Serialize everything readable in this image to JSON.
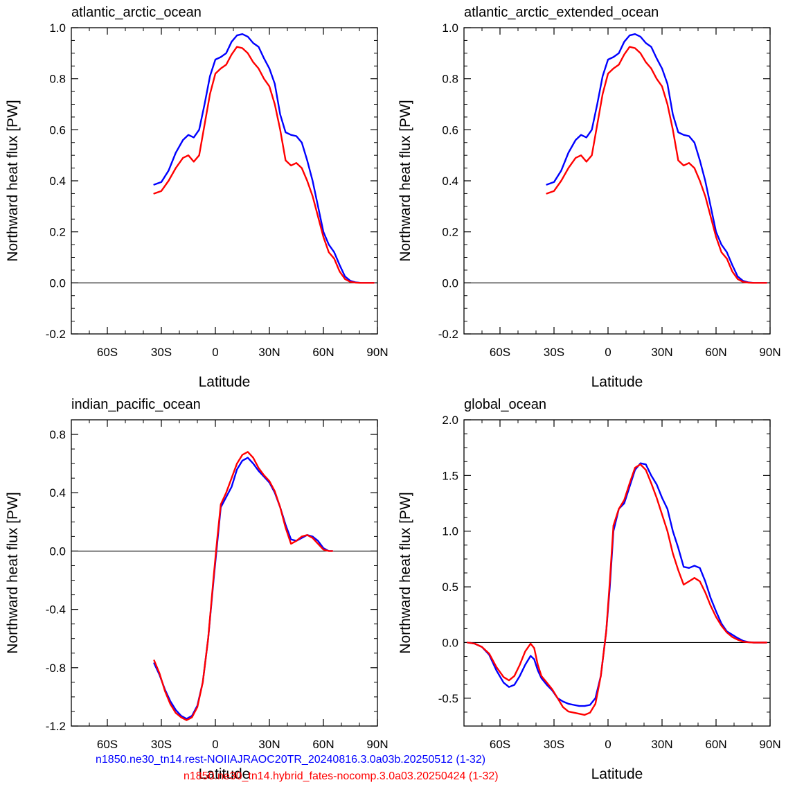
{
  "figure": {
    "legend": [
      {
        "label": "n1850.ne30_tn14.rest-NOIIAJRAOC20TR_20240816.3.0a03b.20250512 (1-32)",
        "color": "#0000ff"
      },
      {
        "label": "n1850.ne30_tn14.hybrid_fates-nocomp.3.0a03.20250424 (1-32)",
        "color": "#ff0000"
      }
    ]
  },
  "chart_data": [
    {
      "type": "line",
      "title": "atlantic_arctic_ocean",
      "xlabel": "Latitude",
      "ylabel": "Northward heat flux [PW]",
      "xlim": [
        -80,
        90
      ],
      "ylim": [
        -0.2,
        1.0
      ],
      "xticks": [
        -60,
        -30,
        0,
        30,
        60,
        90
      ],
      "xticklabels": [
        "60S",
        "30S",
        "0",
        "30N",
        "60N",
        "90N"
      ],
      "yticks": [
        -0.2,
        0.0,
        0.2,
        0.4,
        0.6,
        0.8,
        1.0
      ],
      "yticklabels": [
        "-0.2",
        "0.0",
        "0.2",
        "0.4",
        "0.6",
        "0.8",
        "1.0"
      ],
      "zero_line": true,
      "series": [
        {
          "color": "#0000ff",
          "x": [
            -34,
            -30,
            -26,
            -22,
            -18,
            -15,
            -12,
            -9,
            -6,
            -3,
            0,
            3,
            6,
            9,
            12,
            15,
            18,
            21,
            24,
            27,
            30,
            33,
            36,
            39,
            42,
            45,
            48,
            51,
            54,
            57,
            60,
            63,
            66,
            69,
            72,
            75,
            78,
            81,
            84,
            88
          ],
          "y": [
            0.385,
            0.395,
            0.44,
            0.51,
            0.56,
            0.58,
            0.57,
            0.6,
            0.7,
            0.81,
            0.875,
            0.885,
            0.9,
            0.945,
            0.97,
            0.975,
            0.965,
            0.94,
            0.925,
            0.88,
            0.84,
            0.78,
            0.66,
            0.59,
            0.58,
            0.575,
            0.55,
            0.48,
            0.4,
            0.3,
            0.2,
            0.15,
            0.12,
            0.07,
            0.025,
            0.008,
            0.002,
            0.0,
            0.0,
            0.0
          ]
        },
        {
          "color": "#ff0000",
          "x": [
            -34,
            -30,
            -26,
            -22,
            -18,
            -15,
            -12,
            -9,
            -6,
            -3,
            0,
            3,
            6,
            9,
            12,
            15,
            18,
            21,
            24,
            27,
            30,
            33,
            36,
            39,
            42,
            45,
            48,
            51,
            54,
            57,
            60,
            63,
            66,
            69,
            72,
            75,
            78,
            81,
            84,
            88
          ],
          "y": [
            0.35,
            0.36,
            0.4,
            0.45,
            0.49,
            0.5,
            0.475,
            0.5,
            0.62,
            0.74,
            0.82,
            0.84,
            0.855,
            0.895,
            0.925,
            0.92,
            0.9,
            0.865,
            0.84,
            0.8,
            0.77,
            0.7,
            0.6,
            0.48,
            0.46,
            0.47,
            0.45,
            0.4,
            0.34,
            0.26,
            0.18,
            0.12,
            0.095,
            0.045,
            0.015,
            0.004,
            0.001,
            0.0,
            0.0,
            0.0
          ]
        }
      ]
    },
    {
      "type": "line",
      "title": "atlantic_arctic_extended_ocean",
      "xlabel": "Latitude",
      "ylabel": "Northward heat flux [PW]",
      "xlim": [
        -80,
        90
      ],
      "ylim": [
        -0.2,
        1.0
      ],
      "xticks": [
        -60,
        -30,
        0,
        30,
        60,
        90
      ],
      "xticklabels": [
        "60S",
        "30S",
        "0",
        "30N",
        "60N",
        "90N"
      ],
      "yticks": [
        -0.2,
        0.0,
        0.2,
        0.4,
        0.6,
        0.8,
        1.0
      ],
      "yticklabels": [
        "-0.2",
        "0.0",
        "0.2",
        "0.4",
        "0.6",
        "0.8",
        "1.0"
      ],
      "zero_line": true,
      "series": [
        {
          "color": "#0000ff",
          "x": [
            -34,
            -30,
            -26,
            -22,
            -18,
            -15,
            -12,
            -9,
            -6,
            -3,
            0,
            3,
            6,
            9,
            12,
            15,
            18,
            21,
            24,
            27,
            30,
            33,
            36,
            39,
            42,
            45,
            48,
            51,
            54,
            57,
            60,
            63,
            66,
            69,
            72,
            75,
            78,
            81,
            84,
            88
          ],
          "y": [
            0.385,
            0.395,
            0.44,
            0.51,
            0.56,
            0.58,
            0.57,
            0.6,
            0.7,
            0.81,
            0.875,
            0.885,
            0.9,
            0.945,
            0.97,
            0.975,
            0.965,
            0.94,
            0.925,
            0.88,
            0.84,
            0.78,
            0.66,
            0.59,
            0.58,
            0.575,
            0.55,
            0.48,
            0.4,
            0.3,
            0.2,
            0.15,
            0.12,
            0.07,
            0.025,
            0.008,
            0.002,
            0.0,
            0.0,
            0.0
          ]
        },
        {
          "color": "#ff0000",
          "x": [
            -34,
            -30,
            -26,
            -22,
            -18,
            -15,
            -12,
            -9,
            -6,
            -3,
            0,
            3,
            6,
            9,
            12,
            15,
            18,
            21,
            24,
            27,
            30,
            33,
            36,
            39,
            42,
            45,
            48,
            51,
            54,
            57,
            60,
            63,
            66,
            69,
            72,
            75,
            78,
            81,
            84,
            88
          ],
          "y": [
            0.35,
            0.36,
            0.4,
            0.45,
            0.49,
            0.5,
            0.475,
            0.5,
            0.62,
            0.74,
            0.82,
            0.84,
            0.855,
            0.895,
            0.925,
            0.92,
            0.9,
            0.865,
            0.84,
            0.8,
            0.77,
            0.7,
            0.6,
            0.48,
            0.46,
            0.47,
            0.45,
            0.4,
            0.34,
            0.26,
            0.18,
            0.12,
            0.095,
            0.045,
            0.015,
            0.004,
            0.001,
            0.0,
            0.0,
            0.0
          ]
        }
      ]
    },
    {
      "type": "line",
      "title": "indian_pacific_ocean",
      "xlabel": "Latitude",
      "ylabel": "Northward heat flux [PW]",
      "xlim": [
        -80,
        90
      ],
      "ylim": [
        -1.2,
        0.9
      ],
      "xticks": [
        -60,
        -30,
        0,
        30,
        60,
        90
      ],
      "xticklabels": [
        "60S",
        "30S",
        "0",
        "30N",
        "60N",
        "90N"
      ],
      "yticks": [
        -1.2,
        -0.8,
        -0.4,
        0.0,
        0.4,
        0.8
      ],
      "yticklabels": [
        "-1.2",
        "-0.8",
        "-0.4",
        "0.0",
        "0.4",
        "0.8"
      ],
      "zero_line": true,
      "series": [
        {
          "color": "#0000ff",
          "x": [
            -34,
            -31,
            -28,
            -25,
            -22,
            -19,
            -16,
            -13,
            -10,
            -7,
            -4,
            -1,
            1,
            3,
            6,
            9,
            12,
            15,
            18,
            21,
            24,
            27,
            30,
            33,
            36,
            39,
            42,
            45,
            48,
            51,
            54,
            57,
            60,
            63,
            65
          ],
          "y": [
            -0.77,
            -0.85,
            -0.95,
            -1.03,
            -1.09,
            -1.13,
            -1.15,
            -1.13,
            -1.06,
            -0.9,
            -0.6,
            -0.2,
            0.05,
            0.3,
            0.37,
            0.44,
            0.56,
            0.62,
            0.64,
            0.6,
            0.55,
            0.51,
            0.47,
            0.4,
            0.3,
            0.18,
            0.08,
            0.07,
            0.09,
            0.11,
            0.1,
            0.07,
            0.02,
            0.0,
            0.0
          ]
        },
        {
          "color": "#ff0000",
          "x": [
            -34,
            -31,
            -28,
            -25,
            -22,
            -19,
            -16,
            -13,
            -10,
            -7,
            -4,
            -1,
            1,
            3,
            6,
            9,
            12,
            15,
            18,
            21,
            24,
            27,
            30,
            33,
            36,
            39,
            42,
            45,
            48,
            51,
            54,
            57,
            60,
            63,
            65
          ],
          "y": [
            -0.75,
            -0.84,
            -0.96,
            -1.05,
            -1.11,
            -1.14,
            -1.16,
            -1.14,
            -1.07,
            -0.9,
            -0.6,
            -0.18,
            0.08,
            0.32,
            0.4,
            0.5,
            0.6,
            0.66,
            0.68,
            0.64,
            0.57,
            0.52,
            0.48,
            0.41,
            0.3,
            0.16,
            0.05,
            0.07,
            0.1,
            0.11,
            0.09,
            0.05,
            0.01,
            0.0,
            0.0
          ]
        }
      ]
    },
    {
      "type": "line",
      "title": "global_ocean",
      "xlabel": "Latitude",
      "ylabel": "Northward heat flux [PW]",
      "xlim": [
        -80,
        90
      ],
      "ylim": [
        -0.75,
        2.0
      ],
      "xticks": [
        -60,
        -30,
        0,
        30,
        60,
        90
      ],
      "xticklabels": [
        "60S",
        "30S",
        "0",
        "30N",
        "60N",
        "90N"
      ],
      "yticks": [
        -0.5,
        0.0,
        0.5,
        1.0,
        1.5,
        2.0
      ],
      "yticklabels": [
        "-0.5",
        "0.0",
        "0.5",
        "1.0",
        "1.5",
        "2.0"
      ],
      "zero_line": true,
      "series": [
        {
          "color": "#0000ff",
          "x": [
            -78,
            -74,
            -70,
            -66,
            -62,
            -58,
            -55,
            -52,
            -49,
            -46,
            -43,
            -41,
            -39,
            -37,
            -34,
            -31,
            -28,
            -25,
            -22,
            -19,
            -16,
            -13,
            -10,
            -7,
            -4,
            -1,
            1,
            3,
            6,
            9,
            12,
            15,
            18,
            21,
            24,
            27,
            30,
            33,
            36,
            39,
            42,
            45,
            48,
            51,
            54,
            57,
            60,
            63,
            66,
            69,
            72,
            75,
            78,
            81,
            84,
            88
          ],
          "y": [
            0.0,
            -0.01,
            -0.04,
            -0.11,
            -0.25,
            -0.36,
            -0.4,
            -0.38,
            -0.3,
            -0.2,
            -0.12,
            -0.15,
            -0.25,
            -0.32,
            -0.38,
            -0.43,
            -0.5,
            -0.53,
            -0.55,
            -0.56,
            -0.57,
            -0.57,
            -0.56,
            -0.5,
            -0.3,
            0.1,
            0.5,
            1.0,
            1.2,
            1.25,
            1.4,
            1.55,
            1.61,
            1.6,
            1.5,
            1.42,
            1.3,
            1.2,
            1.0,
            0.85,
            0.68,
            0.67,
            0.69,
            0.67,
            0.55,
            0.4,
            0.28,
            0.17,
            0.1,
            0.07,
            0.04,
            0.015,
            0.004,
            0.0,
            0.0,
            0.0
          ]
        },
        {
          "color": "#ff0000",
          "x": [
            -78,
            -74,
            -70,
            -66,
            -62,
            -58,
            -55,
            -52,
            -49,
            -46,
            -43,
            -41,
            -39,
            -37,
            -34,
            -31,
            -28,
            -25,
            -22,
            -19,
            -16,
            -13,
            -10,
            -7,
            -4,
            -1,
            1,
            3,
            6,
            9,
            12,
            15,
            18,
            21,
            24,
            27,
            30,
            33,
            36,
            39,
            42,
            45,
            48,
            51,
            54,
            57,
            60,
            63,
            66,
            69,
            72,
            75,
            78,
            81,
            84,
            88
          ],
          "y": [
            0.0,
            -0.01,
            -0.04,
            -0.1,
            -0.22,
            -0.31,
            -0.34,
            -0.3,
            -0.2,
            -0.08,
            -0.01,
            -0.05,
            -0.2,
            -0.3,
            -0.36,
            -0.42,
            -0.5,
            -0.58,
            -0.62,
            -0.63,
            -0.64,
            -0.65,
            -0.63,
            -0.55,
            -0.3,
            0.1,
            0.55,
            1.05,
            1.2,
            1.28,
            1.43,
            1.57,
            1.6,
            1.55,
            1.43,
            1.3,
            1.15,
            1.0,
            0.8,
            0.65,
            0.52,
            0.55,
            0.58,
            0.55,
            0.45,
            0.33,
            0.23,
            0.15,
            0.09,
            0.05,
            0.025,
            0.008,
            0.002,
            0.0,
            0.0,
            0.0
          ]
        }
      ]
    }
  ]
}
